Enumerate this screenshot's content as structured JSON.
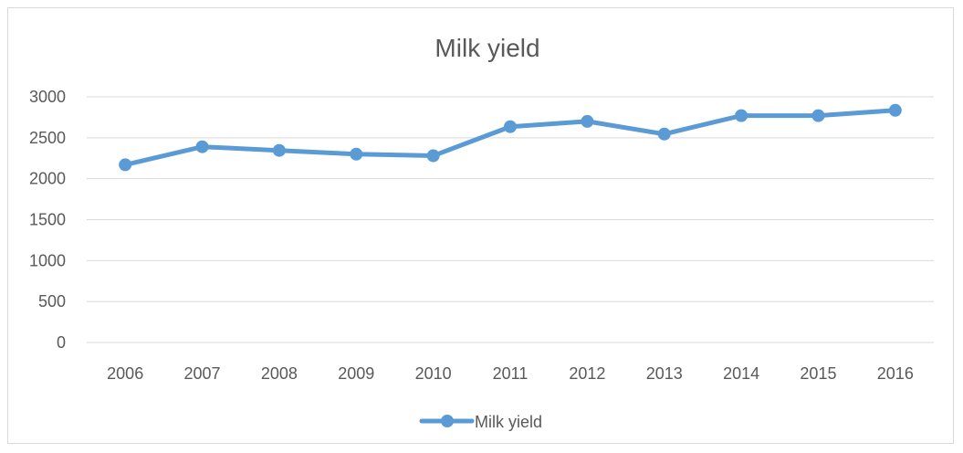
{
  "chart_data": {
    "type": "line",
    "title": "Milk yield",
    "xlabel": "",
    "ylabel": "",
    "categories": [
      "2006",
      "2007",
      "2008",
      "2009",
      "2010",
      "2011",
      "2012",
      "2013",
      "2014",
      "2015",
      "2016"
    ],
    "series": [
      {
        "name": "Milk yield",
        "values": [
          2170,
          2390,
          2345,
          2300,
          2280,
          2635,
          2700,
          2545,
          2770,
          2770,
          2835
        ],
        "color": "#5b9bd5"
      }
    ],
    "ylim": [
      0,
      3000
    ],
    "yticks": [
      "0",
      "500",
      "1000",
      "1500",
      "2000",
      "2500",
      "3000"
    ],
    "grid": true,
    "legend_position": "bottom"
  }
}
